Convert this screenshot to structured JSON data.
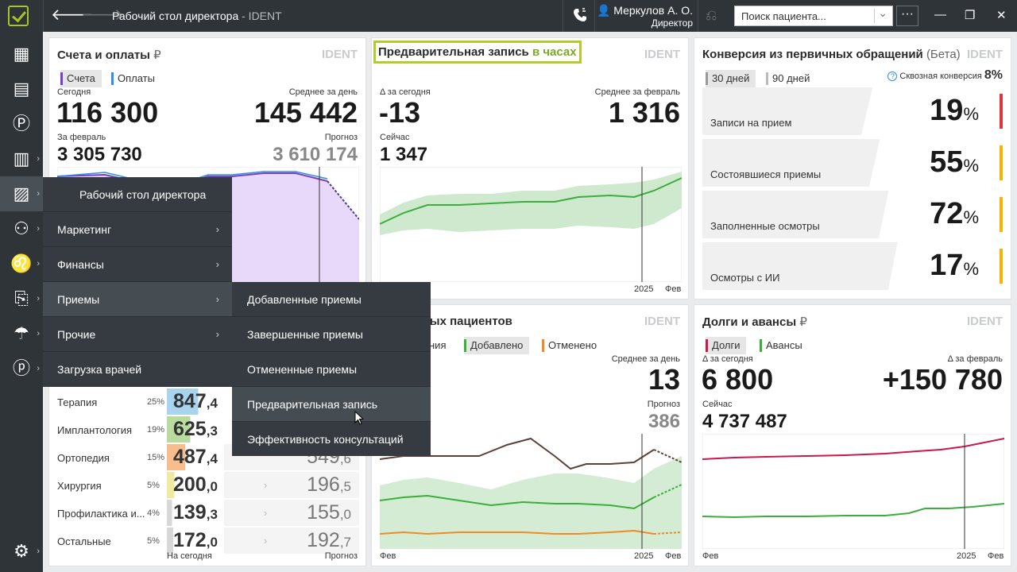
{
  "titlebar": {
    "title": "Рабочий стол директора",
    "title_suffix": "- IDENT",
    "user_name": "Меркулов А. О.",
    "user_role": "Директор",
    "search_placeholder": "Поиск пациента...",
    "more": "···"
  },
  "menu": {
    "items": [
      "Рабочий стол директора",
      "Маркетинг",
      "Финансы",
      "Приемы",
      "Прочие",
      "Загрузка врачей"
    ],
    "submenu": [
      "Добавленные приемы",
      "Завершенные приемы",
      "Отмененные приемы",
      "Предварительная запись",
      "Эффективность консультаций"
    ]
  },
  "panels": {
    "bills": {
      "title": "Счета и оплаты",
      "currency": "₽",
      "tag": "IDENT",
      "legend": [
        "Счета",
        "Оплаты"
      ],
      "today_label": "Сегодня",
      "today_value": "116 300",
      "avg_label": "Среднее за день",
      "avg_value": "145 442",
      "month_label": "За февраль",
      "month_value": "3 305 730",
      "forecast_label": "Прогноз",
      "forecast_value": "3 610 174"
    },
    "prerecord": {
      "title": "Предварительная запись",
      "title_suffix": "в часах",
      "tag": "IDENT",
      "delta_label": "Δ за сегодня",
      "delta_value": "-13",
      "avg_label": "Среднее за февраль",
      "avg_value": "1 316",
      "now_label": "Сейчас",
      "now_value": "1 347",
      "axis_year": "2025",
      "axis_month": "Фев"
    },
    "conversion": {
      "title": "Конверсия из первичных обращений",
      "title_suffix": "(Бета)",
      "tag": "IDENT",
      "period_tabs": [
        "30 дней",
        "90 дней"
      ],
      "through_label": "Сквозная конверсия",
      "through_value": "8%",
      "help_icon": "?",
      "rows": [
        {
          "label": "Записи на прием",
          "value": "19",
          "unit": "%",
          "color": "#e0353f"
        },
        {
          "label": "Состоявшиеся приемы",
          "value": "55",
          "unit": "%",
          "color": "#f5b400"
        },
        {
          "label": "Заполненные осмотры",
          "value": "72",
          "unit": "%",
          "color": "#f5b400"
        },
        {
          "label": "Осмотры с ИИ",
          "value": "17",
          "unit": "%",
          "color": "#f5b400"
        }
      ]
    },
    "primary": {
      "title": "первичных пациентов",
      "tag": "IDENT",
      "legend": [
        "ния",
        "Добавлено",
        "Отменено"
      ],
      "avg_label": "Среднее за день",
      "avg_value": "13",
      "forecast_label": "Прогноз",
      "forecast_value": "386",
      "axis_start": "Фев",
      "axis_year": "2025",
      "axis_month": "Фев"
    },
    "debts": {
      "title": "Долги и авансы",
      "currency": "₽",
      "tag": "IDENT",
      "legend": [
        "Долги",
        "Авансы"
      ],
      "delta_label": "Δ за сегодня",
      "delta_value": "6 800",
      "month_delta_label": "Δ за февраль",
      "month_delta_value": "+150 780",
      "now_label": "Сейчас",
      "now_value": "4 737 487",
      "axis_start": "Фев",
      "axis_year": "2025",
      "axis_month": "Фев"
    },
    "departments": {
      "rows": [
        {
          "name": "Терапия",
          "pct": "25%",
          "int": "847",
          "dec": ",4",
          "color": "#a8d4f0",
          "fill": 0.55
        },
        {
          "name": "Имплантология",
          "pct": "19%",
          "int": "625",
          "dec": ",3",
          "color": "#b9dba0",
          "fill": 0.41
        },
        {
          "name": "Ортопедия",
          "pct": "15%",
          "int": "487",
          "dec": ",4",
          "color": "#f7bd8c",
          "fill": 0.32,
          "forecast_int": "549",
          "forecast_dec": ",6"
        },
        {
          "name": "Хирургия",
          "pct": "5%",
          "int": "200",
          "dec": ",0",
          "color": "#eeeaa0",
          "fill": 0.13,
          "forecast_int": "196",
          "forecast_dec": ",5"
        },
        {
          "name": "Профилактика и...",
          "pct": "4%",
          "int": "139",
          "dec": ",3",
          "color": "#d8d8d8",
          "fill": 0.09,
          "forecast_int": "155",
          "forecast_dec": ",0"
        },
        {
          "name": "Остальные",
          "pct": "5%",
          "int": "172",
          "dec": ",0",
          "color": "#d8d8d8",
          "fill": 0.11,
          "forecast_int": "192",
          "forecast_dec": ",7"
        }
      ],
      "footer_today": "На сегодня",
      "footer_forecast": "Прогноз"
    }
  },
  "colors": {
    "accent": "#a6c425",
    "bills_series": "#7b3fc4",
    "payments_series": "#2f8fe0",
    "added": "#3cae3c",
    "cancelled": "#f08a24",
    "debts": "#c8184e",
    "advances": "#3cae3c"
  },
  "icons": [
    "back-arrow-icon",
    "forward-arrow-icon",
    "phone-icon",
    "user-icon",
    "document-back-icon",
    "minimize-icon",
    "maximize-icon",
    "close-icon",
    "calendar-icon",
    "schedule-icon",
    "ruble-icon",
    "tasks-icon",
    "chart-icon",
    "patients-icon",
    "tooth-icon",
    "lab-icon",
    "umbrella-icon",
    "ruble-hand-icon",
    "settings-icon"
  ]
}
